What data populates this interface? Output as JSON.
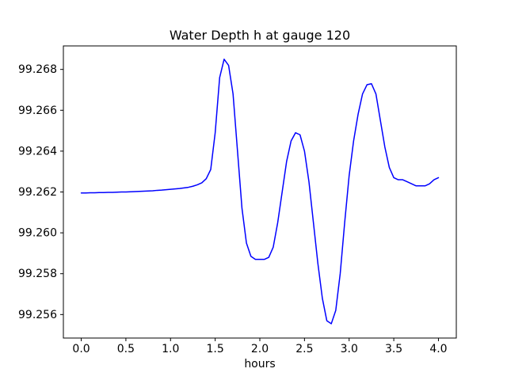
{
  "chart_data": {
    "type": "line",
    "title": "Water Depth h at gauge 120",
    "xlabel": "hours",
    "ylabel": "",
    "legend": null,
    "grid": false,
    "line_color": "#0000ff",
    "axis_color": "#000000",
    "xlim": [
      -0.2,
      4.2
    ],
    "ylim": [
      99.25485,
      99.26915
    ],
    "xticks": [
      0.0,
      0.5,
      1.0,
      1.5,
      2.0,
      2.5,
      3.0,
      3.5,
      4.0
    ],
    "xtick_labels": [
      "0.0",
      "0.5",
      "1.0",
      "1.5",
      "2.0",
      "2.5",
      "3.0",
      "3.5",
      "4.0"
    ],
    "yticks": [
      99.256,
      99.258,
      99.26,
      99.262,
      99.264,
      99.266,
      99.268
    ],
    "ytick_labels": [
      "99.256",
      "99.258",
      "99.260",
      "99.262",
      "99.264",
      "99.266",
      "99.268"
    ],
    "x": [
      0.0,
      0.05,
      0.1,
      0.15,
      0.2,
      0.25,
      0.3,
      0.35,
      0.4,
      0.45,
      0.5,
      0.55,
      0.6,
      0.65,
      0.7,
      0.75,
      0.8,
      0.85,
      0.9,
      0.95,
      1.0,
      1.05,
      1.1,
      1.15,
      1.2,
      1.25,
      1.3,
      1.35,
      1.4,
      1.45,
      1.5,
      1.55,
      1.6,
      1.65,
      1.7,
      1.75,
      1.8,
      1.85,
      1.9,
      1.95,
      2.0,
      2.05,
      2.1,
      2.15,
      2.2,
      2.25,
      2.3,
      2.35,
      2.4,
      2.45,
      2.5,
      2.55,
      2.6,
      2.65,
      2.7,
      2.75,
      2.8,
      2.85,
      2.9,
      2.95,
      3.0,
      3.05,
      3.1,
      3.15,
      3.2,
      3.25,
      3.3,
      3.35,
      3.4,
      3.45,
      3.5,
      3.55,
      3.6,
      3.65,
      3.7,
      3.75,
      3.8,
      3.85,
      3.9,
      3.95,
      4.0
    ],
    "y": [
      99.26195,
      99.26195,
      99.26196,
      99.26196,
      99.26197,
      99.26197,
      99.26198,
      99.26198,
      99.26199,
      99.262,
      99.262,
      99.26201,
      99.26202,
      99.26203,
      99.26204,
      99.26205,
      99.26206,
      99.26208,
      99.26209,
      99.26211,
      99.26213,
      99.26215,
      99.26217,
      99.2622,
      99.26223,
      99.26228,
      99.26235,
      99.26245,
      99.26265,
      99.2631,
      99.2649,
      99.2676,
      99.2685,
      99.2682,
      99.2668,
      99.264,
      99.2612,
      99.2595,
      99.25885,
      99.2587,
      99.2587,
      99.2587,
      99.2588,
      99.2593,
      99.2605,
      99.262,
      99.2635,
      99.2645,
      99.2649,
      99.2648,
      99.264,
      99.2625,
      99.2605,
      99.2585,
      99.2568,
      99.2557,
      99.25555,
      99.2562,
      99.258,
      99.2605,
      99.2628,
      99.2645,
      99.2658,
      99.2668,
      99.26725,
      99.2673,
      99.2668,
      99.2655,
      99.2642,
      99.2632,
      99.2627,
      99.2626,
      99.2626,
      99.2625,
      99.2624,
      99.2623,
      99.2623,
      99.2623,
      99.2624,
      99.2626,
      99.2627
    ]
  }
}
